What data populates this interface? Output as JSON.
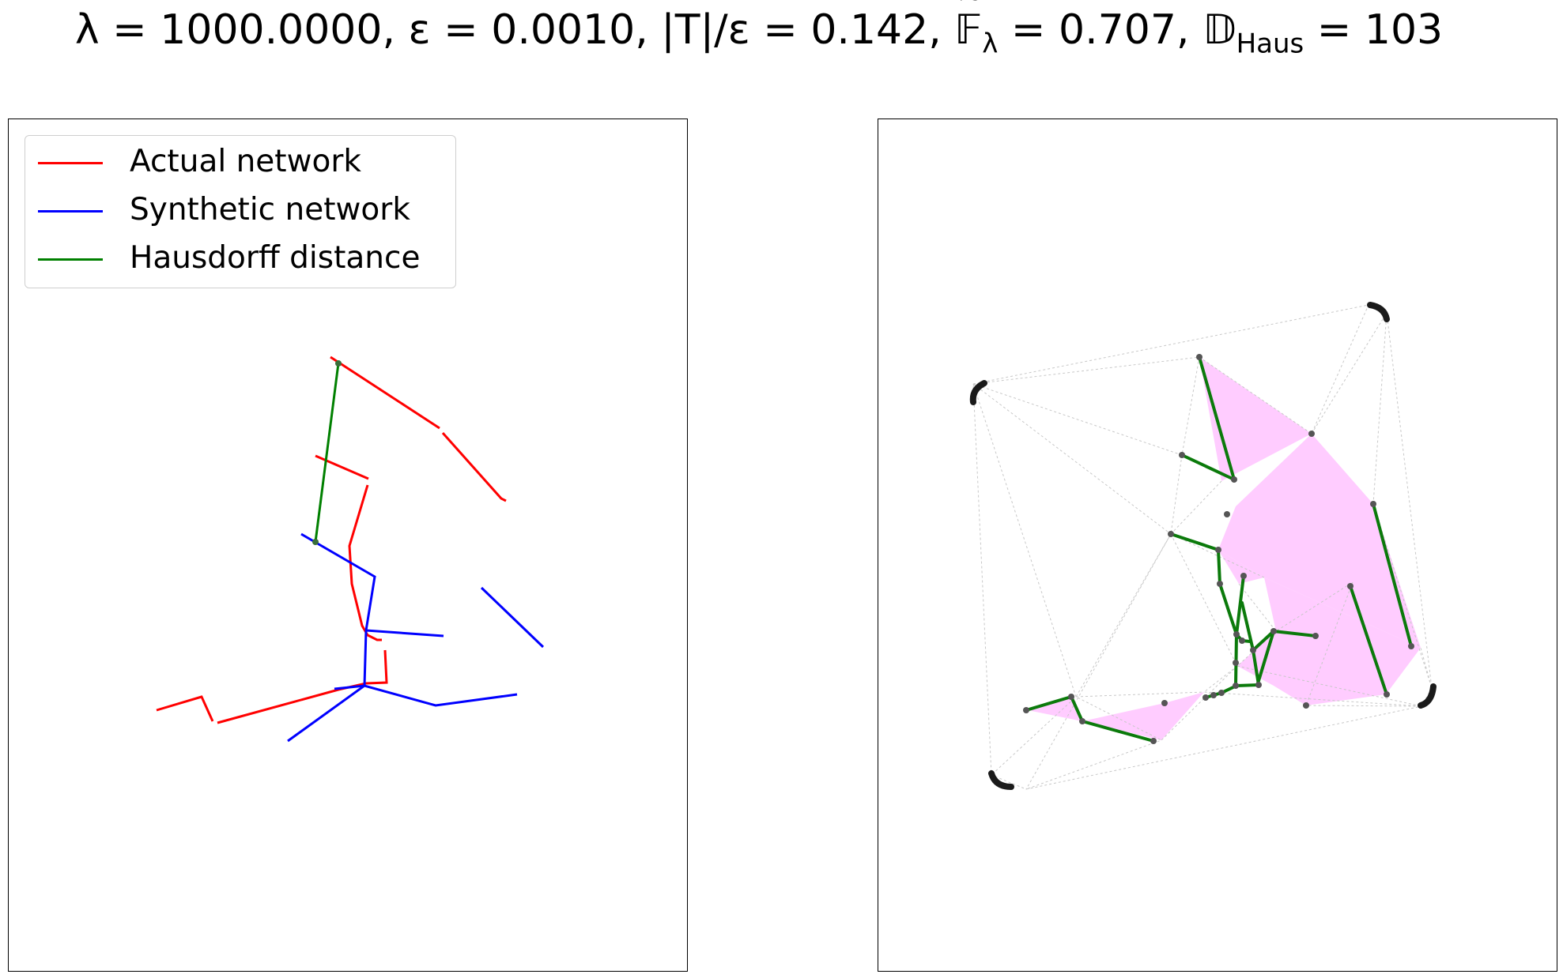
{
  "title": {
    "lambda_part": "λ = 1000.0000, ε = 0.0010, |T|/ε = 0.142, ",
    "f_symbol": "𝔽",
    "f_sub": "λ",
    "f_value": " = 0.707, ",
    "d_symbol": "𝔻",
    "d_sub": "Haus",
    "d_value": " = 103"
  },
  "colors": {
    "actual": "#ff0000",
    "synthetic": "#0000ff",
    "hausdorff": "#008000",
    "fill": "#ffccff",
    "edges": "#c8c8c8",
    "nodes": "#555555"
  },
  "legend": [
    {
      "label": "Actual network",
      "color": "#ff0000"
    },
    {
      "label": "Synthetic network",
      "color": "#0000ff"
    },
    {
      "label": "Hausdorff distance",
      "color": "#008000"
    }
  ]
}
